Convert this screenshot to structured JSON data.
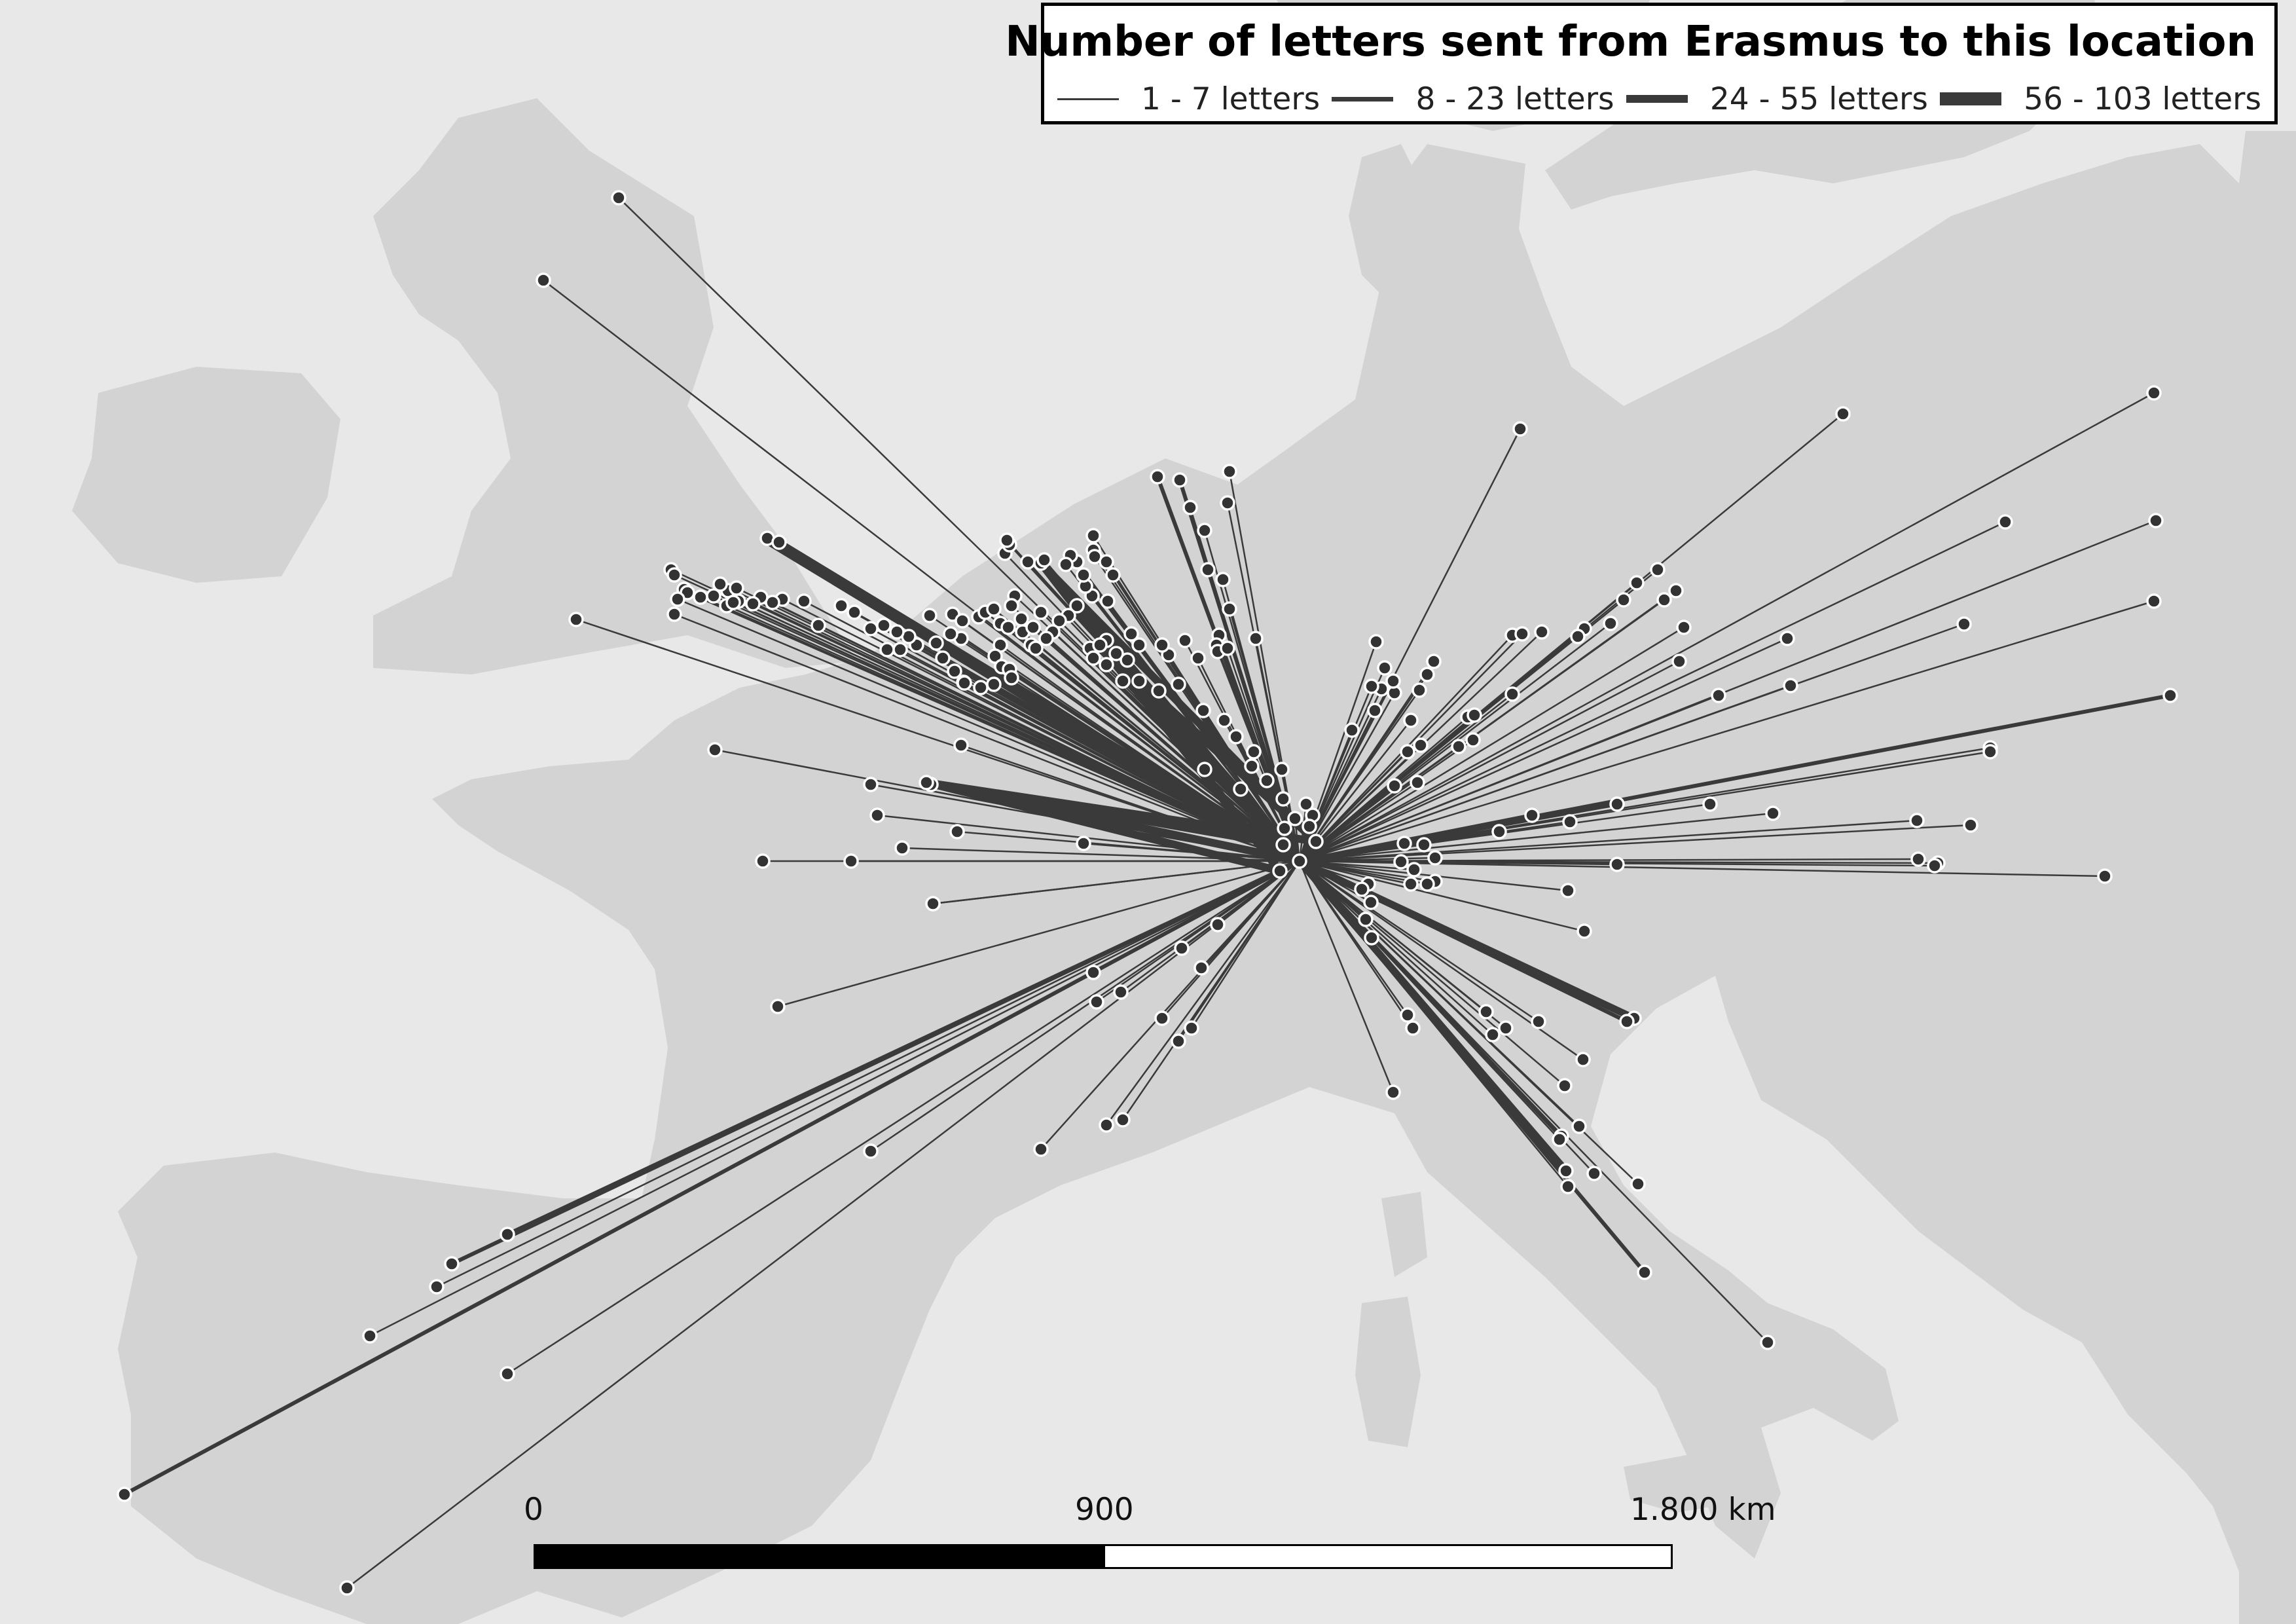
{
  "legend": {
    "title": "Number of letters sent from Erasmus to this location",
    "items": [
      {
        "label": "1 - 7 letters",
        "letters": [
          1,
          7
        ]
      },
      {
        "label": "8 - 23 letters",
        "letters": [
          8,
          23
        ]
      },
      {
        "label": "24 - 55 letters",
        "letters": [
          24,
          55
        ]
      },
      {
        "label": "56 - 103 letters",
        "letters": [
          56,
          103
        ]
      }
    ]
  },
  "scale_bar": {
    "labels": [
      "0",
      "900",
      "1.800 km"
    ],
    "unit": "km",
    "max_km": 1800
  },
  "colors": {
    "sea": "#e8e8e8",
    "land": "#d3d3d3",
    "line": "#3a3a3a",
    "marker_fill": "#333333",
    "marker_stroke": "#ffffff"
  },
  "map": {
    "features": [
      "land-masses",
      "sea",
      "correspondence-lines",
      "location-markers"
    ]
  }
}
